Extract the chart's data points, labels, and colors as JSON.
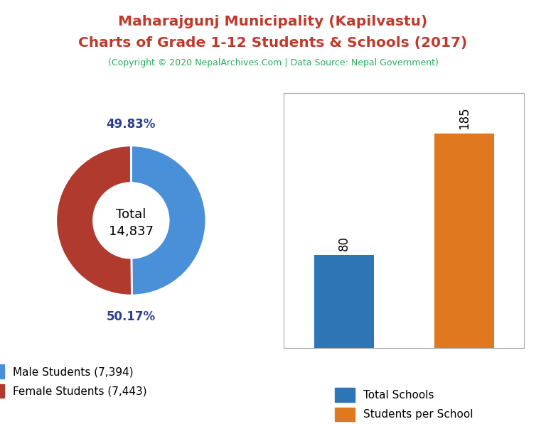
{
  "title_line1": "Maharajgunj Municipality (Kapilvastu)",
  "title_line2": "Charts of Grade 1-12 Students & Schools (2017)",
  "subtitle": "(Copyright © 2020 NepalArchives.Com | Data Source: Nepal Government)",
  "title_color": "#c0392b",
  "subtitle_color": "#27ae60",
  "male_students": 7394,
  "female_students": 7443,
  "total_students": 14837,
  "male_pct": "49.83%",
  "female_pct": "50.17%",
  "male_color": "#4a90d9",
  "female_color": "#b03a2e",
  "pct_label_color": "#2c3e8c",
  "total_schools": 80,
  "students_per_school": 185,
  "bar_blue": "#2E75B6",
  "bar_orange": "#E07820",
  "legend_label_schools": "Total Schools",
  "legend_label_sps": "Students per School",
  "bar_ylim": [
    0,
    220
  ],
  "background_color": "#ffffff"
}
